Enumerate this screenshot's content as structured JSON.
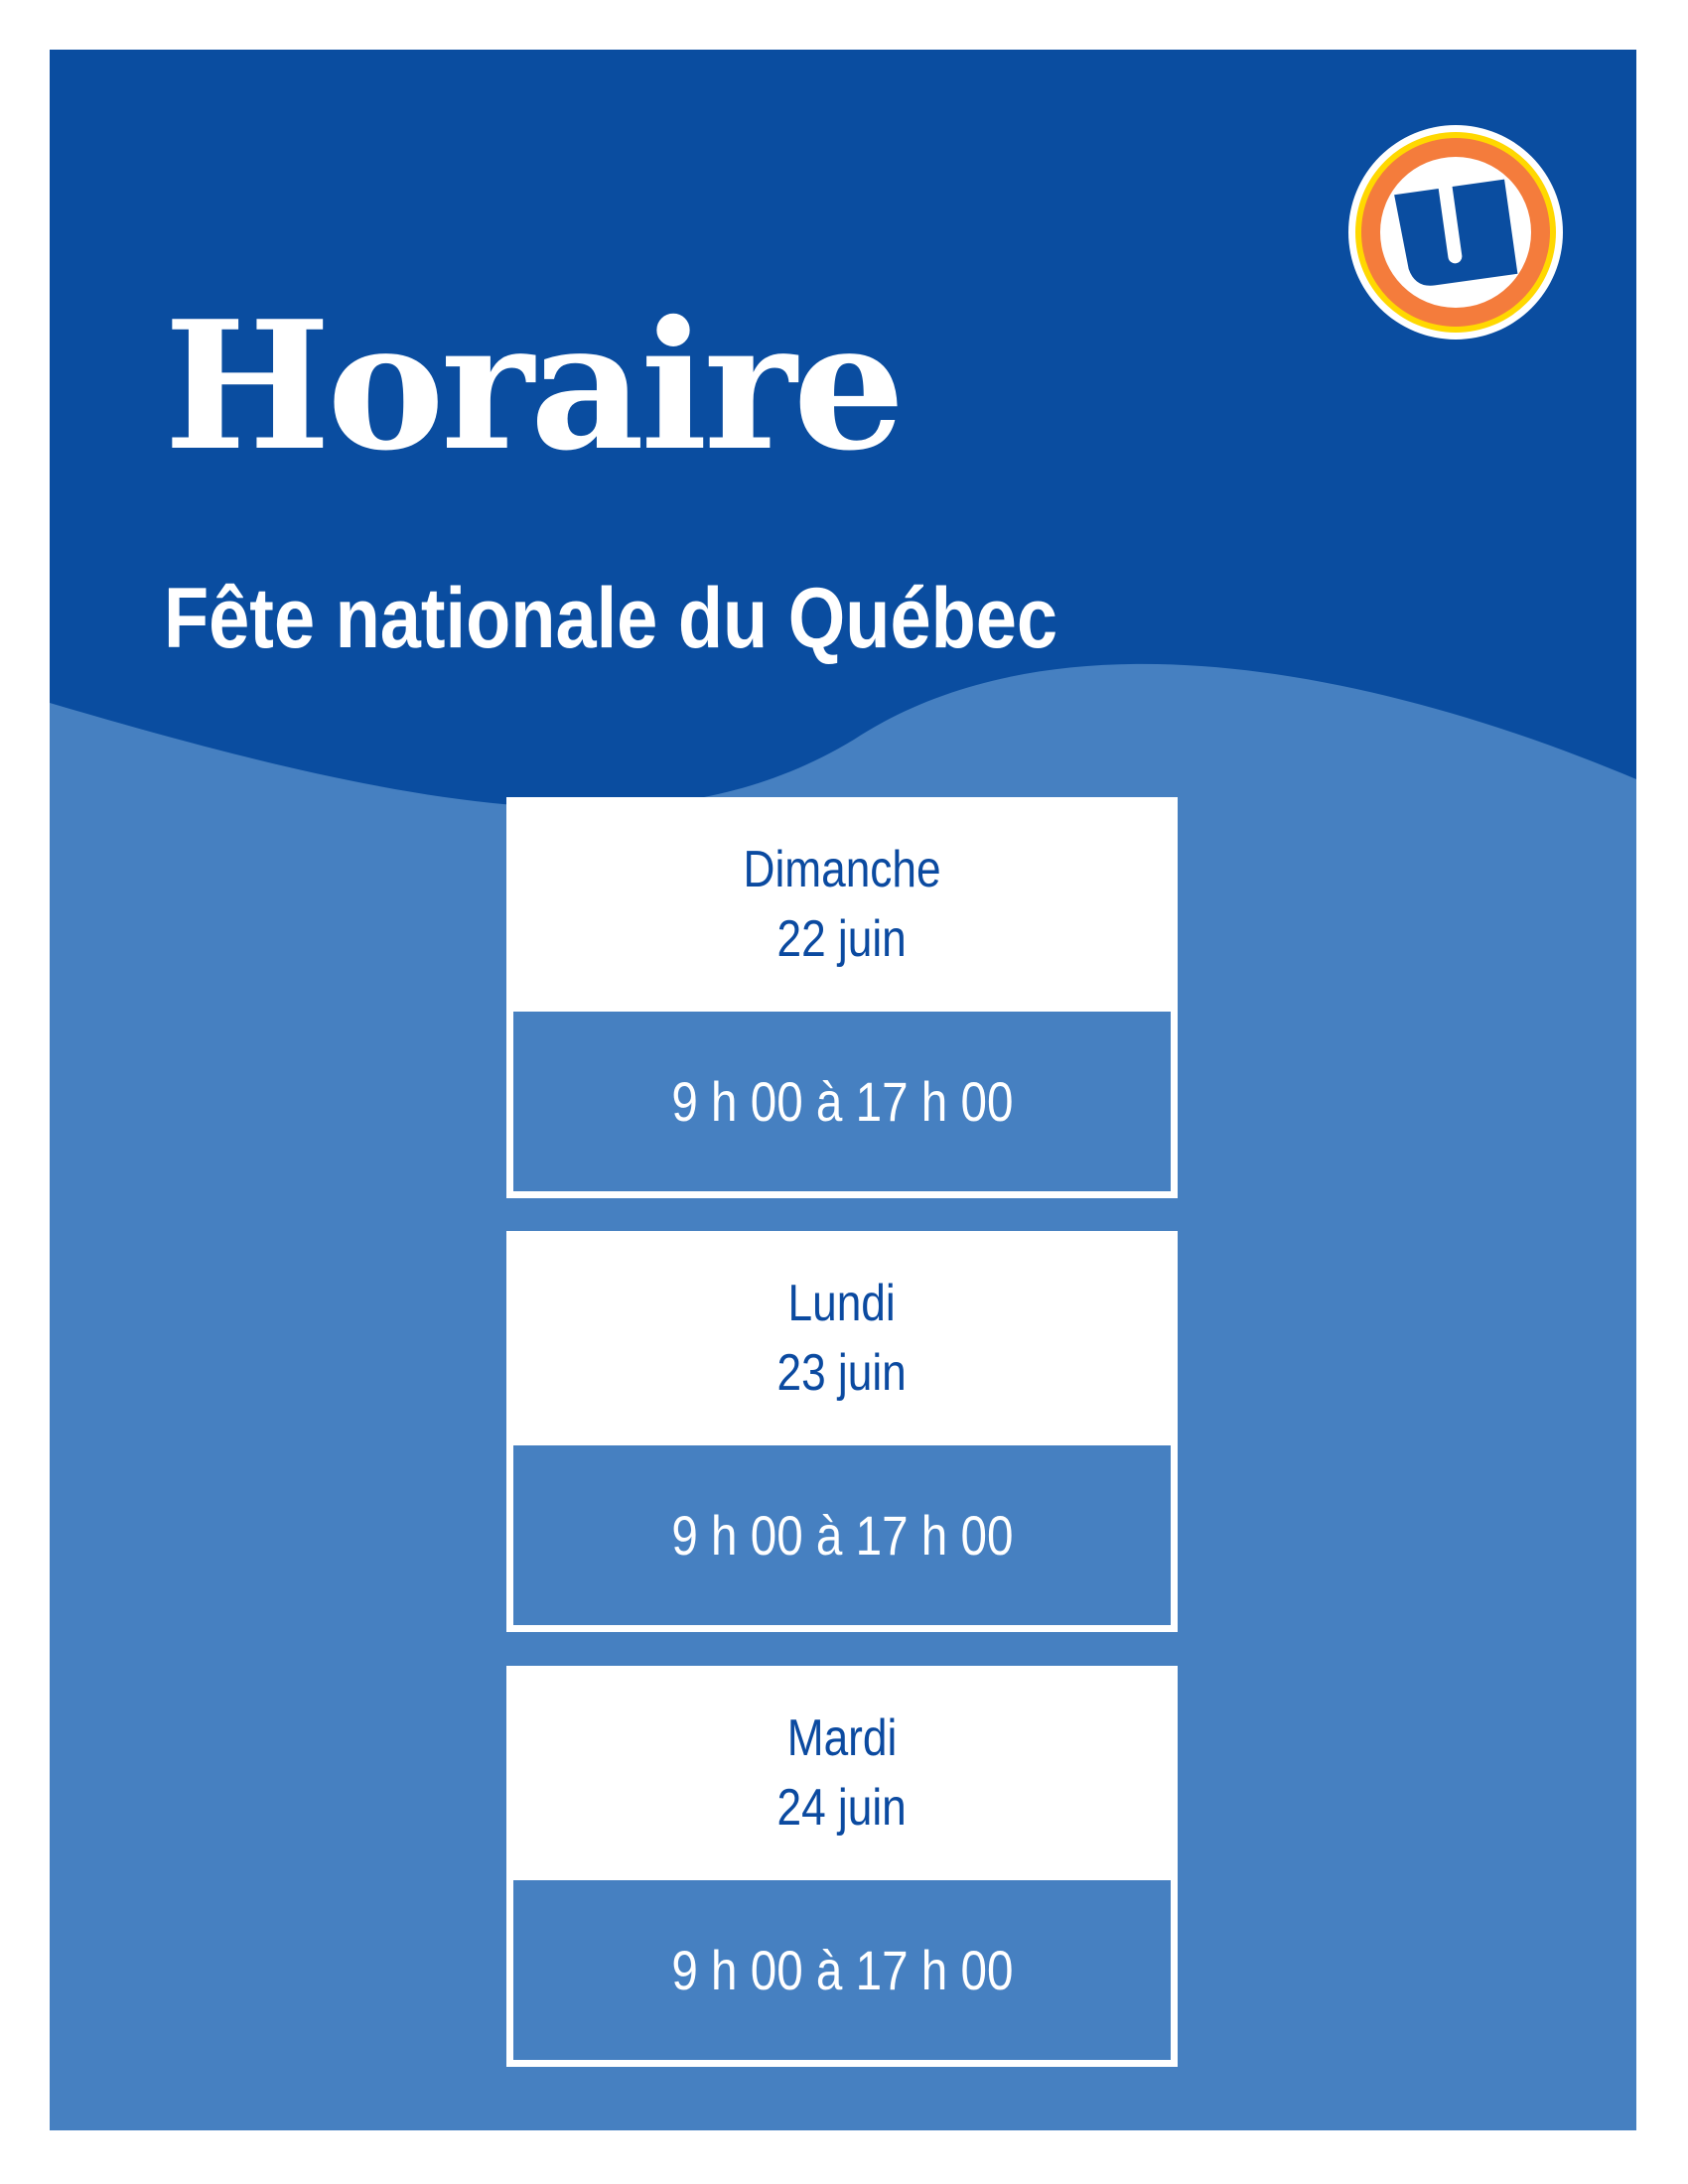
{
  "header": {
    "title": "Horaire",
    "subtitle": "Fête nationale du Québec",
    "logo": {
      "icon": "u-logo",
      "letter": "U"
    }
  },
  "colors": {
    "dark_blue": "#0a4da0",
    "light_blue": "#4680c1",
    "text_blue": "#0b4aa0",
    "logo_orange": "#f47c3c",
    "logo_yellow": "#ffd800"
  },
  "schedule": [
    {
      "day": "Dimanche",
      "date": "22 juin",
      "hours": "9 h 00 à 17 h 00"
    },
    {
      "day": "Lundi",
      "date": "23 juin",
      "hours": "9 h 00 à 17 h 00"
    },
    {
      "day": "Mardi",
      "date": "24 juin",
      "hours": "9 h 00 à 17 h 00"
    }
  ]
}
